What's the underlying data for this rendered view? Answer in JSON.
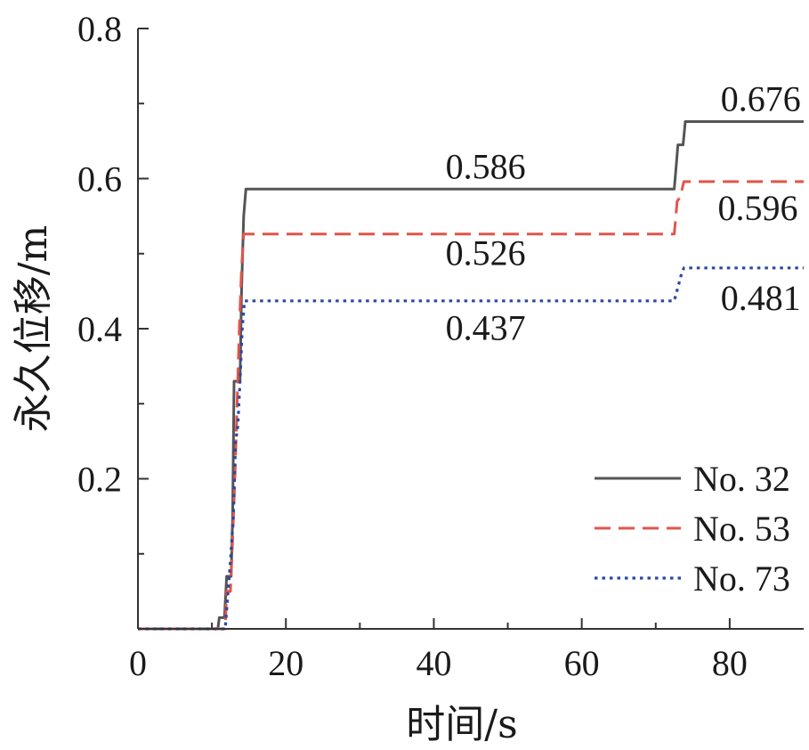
{
  "chart_data": {
    "type": "line",
    "title": "",
    "xlabel": "时间/s",
    "ylabel": "永久位移/m",
    "xlim": [
      0,
      90
    ],
    "ylim": [
      0,
      0.8
    ],
    "x_ticks": [
      0,
      20,
      40,
      60,
      80
    ],
    "x_tick_labels": [
      "0",
      "20",
      "40",
      "60",
      "80"
    ],
    "y_ticks": [
      0.2,
      0.4,
      0.6,
      0.8
    ],
    "y_tick_labels": [
      "0.2",
      "0.4",
      "0.6",
      "0.8"
    ],
    "grid": false,
    "legend_position": "bottom-right",
    "series": [
      {
        "name": "No. 32",
        "color": "#555555",
        "dash": "solid",
        "points": [
          [
            0,
            0
          ],
          [
            10.8,
            0
          ],
          [
            11,
            0.015
          ],
          [
            11.7,
            0.015
          ],
          [
            12,
            0.07
          ],
          [
            12.6,
            0.07
          ],
          [
            12.8,
            0.15
          ],
          [
            13,
            0.33
          ],
          [
            13.8,
            0.33
          ],
          [
            14,
            0.45
          ],
          [
            14.3,
            0.55
          ],
          [
            14.6,
            0.586
          ],
          [
            72.5,
            0.586
          ],
          [
            72.8,
            0.62
          ],
          [
            73,
            0.645
          ],
          [
            73.7,
            0.645
          ],
          [
            74,
            0.676
          ],
          [
            90,
            0.676
          ]
        ]
      },
      {
        "name": "No. 53",
        "color": "#e0554a",
        "dash": "dashed",
        "points": [
          [
            0,
            0
          ],
          [
            11.8,
            0
          ],
          [
            12,
            0.05
          ],
          [
            12.5,
            0.05
          ],
          [
            12.8,
            0.12
          ],
          [
            13.1,
            0.2
          ],
          [
            13.4,
            0.3
          ],
          [
            13.7,
            0.4
          ],
          [
            14,
            0.48
          ],
          [
            14.3,
            0.526
          ],
          [
            72.5,
            0.526
          ],
          [
            72.9,
            0.57
          ],
          [
            73.3,
            0.575
          ],
          [
            73.8,
            0.596
          ],
          [
            90,
            0.596
          ]
        ]
      },
      {
        "name": "No. 73",
        "color": "#2a4aa0",
        "dash": "dotted",
        "points": [
          [
            0,
            0
          ],
          [
            11.8,
            0
          ],
          [
            12.1,
            0.04
          ],
          [
            12.5,
            0.09
          ],
          [
            12.9,
            0.15
          ],
          [
            13.2,
            0.25
          ],
          [
            13.5,
            0.27
          ],
          [
            13.8,
            0.33
          ],
          [
            14.1,
            0.4
          ],
          [
            14.4,
            0.437
          ],
          [
            72.5,
            0.437
          ],
          [
            73,
            0.455
          ],
          [
            73.4,
            0.47
          ],
          [
            73.8,
            0.481
          ],
          [
            90,
            0.481
          ]
        ]
      }
    ],
    "annotations": [
      {
        "text": "0.586",
        "x": 47,
        "y": 0.6
      },
      {
        "text": "0.526",
        "x": 47,
        "y": 0.485
      },
      {
        "text": "0.437",
        "x": 47,
        "y": 0.385
      },
      {
        "text": "0.676",
        "x": 84.2,
        "y": 0.69
      },
      {
        "text": "0.596",
        "x": 83.8,
        "y": 0.545
      },
      {
        "text": "0.481",
        "x": 84.2,
        "y": 0.425
      }
    ]
  }
}
